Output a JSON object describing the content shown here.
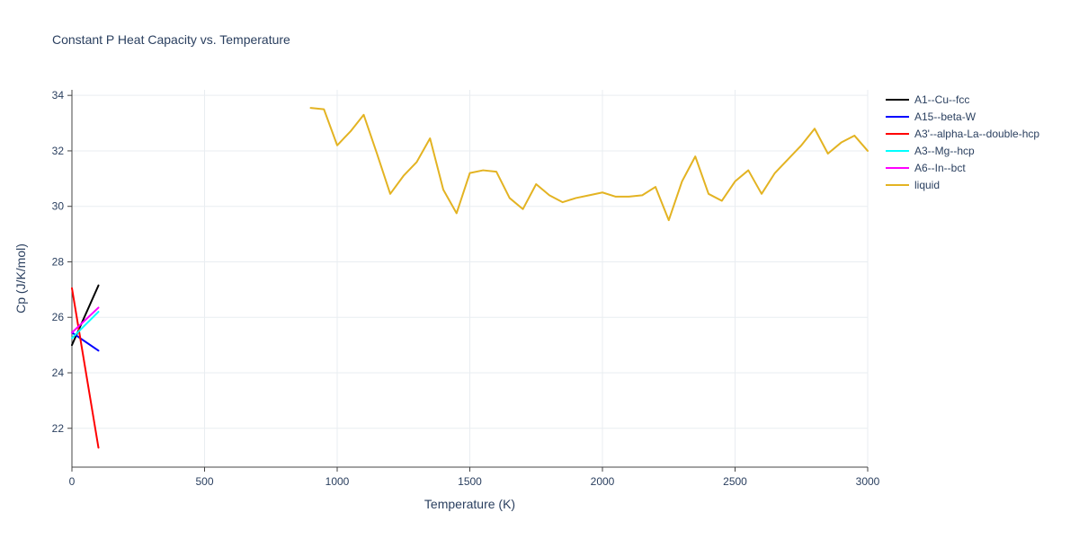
{
  "chart_data": {
    "type": "line",
    "title": "Constant P Heat Capacity vs. Temperature",
    "xlabel": "Temperature (K)",
    "ylabel": "Cp (J/K/mol)",
    "xlim": [
      0,
      3000
    ],
    "ylim": [
      20.6,
      34.2
    ],
    "x_ticks": [
      0,
      500,
      1000,
      1500,
      2000,
      2500,
      3000
    ],
    "y_ticks": [
      22,
      24,
      26,
      28,
      30,
      32,
      34
    ],
    "grid": true,
    "legend_position": "top-right-outside",
    "colors": {
      "text": "#2a3f5f",
      "grid": "#e9edf1",
      "axis_line": "#444444"
    },
    "series": [
      {
        "name": "A1--Cu--fcc",
        "color": "#000000",
        "points": [
          [
            0,
            25.0
          ],
          [
            100,
            27.15
          ]
        ]
      },
      {
        "name": "A15--beta-W",
        "color": "#0000ff",
        "points": [
          [
            0,
            25.45
          ],
          [
            100,
            24.8
          ]
        ]
      },
      {
        "name": "A3'--alpha-La--double-hcp",
        "color": "#ff0000",
        "points": [
          [
            0,
            27.05
          ],
          [
            100,
            21.3
          ]
        ]
      },
      {
        "name": "A3--Mg--hcp",
        "color": "#00ffff",
        "points": [
          [
            0,
            25.25
          ],
          [
            100,
            26.2
          ]
        ]
      },
      {
        "name": "A6--In--bct",
        "color": "#ff00ff",
        "points": [
          [
            0,
            25.45
          ],
          [
            100,
            26.35
          ]
        ]
      },
      {
        "name": "liquid",
        "color": "#e3b322",
        "points": [
          [
            900,
            33.55
          ],
          [
            950,
            33.5
          ],
          [
            1000,
            32.2
          ],
          [
            1050,
            32.7
          ],
          [
            1100,
            33.3
          ],
          [
            1150,
            31.9
          ],
          [
            1200,
            30.45
          ],
          [
            1250,
            31.1
          ],
          [
            1300,
            31.6
          ],
          [
            1350,
            32.45
          ],
          [
            1400,
            30.6
          ],
          [
            1450,
            29.75
          ],
          [
            1500,
            31.2
          ],
          [
            1550,
            31.3
          ],
          [
            1600,
            31.25
          ],
          [
            1650,
            30.3
          ],
          [
            1700,
            29.9
          ],
          [
            1750,
            30.8
          ],
          [
            1800,
            30.4
          ],
          [
            1850,
            30.15
          ],
          [
            1900,
            30.3
          ],
          [
            1950,
            30.4
          ],
          [
            2000,
            30.5
          ],
          [
            2050,
            30.35
          ],
          [
            2100,
            30.35
          ],
          [
            2150,
            30.4
          ],
          [
            2200,
            30.7
          ],
          [
            2250,
            29.5
          ],
          [
            2300,
            30.9
          ],
          [
            2350,
            31.8
          ],
          [
            2400,
            30.45
          ],
          [
            2450,
            30.2
          ],
          [
            2500,
            30.9
          ],
          [
            2550,
            31.3
          ],
          [
            2600,
            30.45
          ],
          [
            2650,
            31.2
          ],
          [
            2700,
            31.7
          ],
          [
            2750,
            32.2
          ],
          [
            2800,
            32.8
          ],
          [
            2850,
            31.9
          ],
          [
            2900,
            32.3
          ],
          [
            2950,
            32.55
          ],
          [
            3000,
            32.0
          ]
        ]
      }
    ]
  }
}
